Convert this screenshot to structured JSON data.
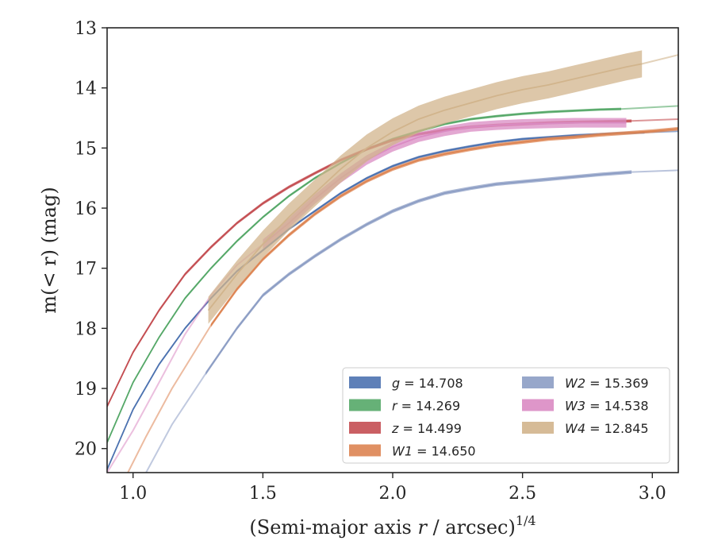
{
  "chart_data": {
    "type": "line",
    "xlabel": "(Semi-major axis r / arcsec)",
    "xlabel_italic": "r",
    "xlabel_sup": "1/4",
    "ylabel": "m(< r) (mag)",
    "xlim": [
      0.9,
      3.1
    ],
    "ylim": [
      20.4,
      13.0
    ],
    "y_inverted": true,
    "xticks": [
      "1.0",
      "1.5",
      "2.0",
      "2.5",
      "3.0"
    ],
    "yticks": [
      "13",
      "14",
      "15",
      "16",
      "17",
      "18",
      "19",
      "20"
    ],
    "grid": false,
    "legend_position": "lower-right",
    "series": [
      {
        "name": "g = 14.708",
        "band": "g",
        "mag": "14.708",
        "color": "#4C72B0",
        "points": [
          [
            0.9,
            20.35
          ],
          [
            1.0,
            19.35
          ],
          [
            1.1,
            18.6
          ],
          [
            1.2,
            18.0
          ],
          [
            1.3,
            17.5
          ],
          [
            1.4,
            17.05
          ],
          [
            1.5,
            16.7
          ],
          [
            1.6,
            16.35
          ],
          [
            1.7,
            16.05
          ],
          [
            1.8,
            15.75
          ],
          [
            1.9,
            15.5
          ],
          [
            2.0,
            15.3
          ],
          [
            2.1,
            15.15
          ],
          [
            2.2,
            15.05
          ],
          [
            2.3,
            14.97
          ],
          [
            2.4,
            14.9
          ],
          [
            2.5,
            14.85
          ],
          [
            2.6,
            14.82
          ],
          [
            2.7,
            14.79
          ],
          [
            2.8,
            14.77
          ],
          [
            2.9,
            14.75
          ],
          [
            2.97,
            14.74
          ]
        ],
        "ext": [
          [
            2.97,
            14.74
          ],
          [
            3.1,
            14.72
          ]
        ],
        "band_from": 0.9,
        "band_width": 0.04
      },
      {
        "name": "r = 14.269",
        "band": "r",
        "mag": "14.269",
        "color": "#55A868",
        "points": [
          [
            0.9,
            19.9
          ],
          [
            1.0,
            18.9
          ],
          [
            1.1,
            18.15
          ],
          [
            1.2,
            17.5
          ],
          [
            1.3,
            17.0
          ],
          [
            1.4,
            16.55
          ],
          [
            1.5,
            16.15
          ],
          [
            1.6,
            15.8
          ],
          [
            1.7,
            15.5
          ],
          [
            1.8,
            15.25
          ],
          [
            1.9,
            15.02
          ],
          [
            2.0,
            14.85
          ],
          [
            2.1,
            14.72
          ],
          [
            2.2,
            14.6
          ],
          [
            2.3,
            14.52
          ],
          [
            2.4,
            14.47
          ],
          [
            2.5,
            14.43
          ],
          [
            2.6,
            14.4
          ],
          [
            2.7,
            14.38
          ],
          [
            2.8,
            14.36
          ],
          [
            2.88,
            14.35
          ]
        ],
        "ext": [
          [
            2.88,
            14.35
          ],
          [
            3.1,
            14.3
          ]
        ],
        "band_from": 0.9,
        "band_width": 0.04
      },
      {
        "name": "z = 14.499",
        "band": "z",
        "mag": "14.499",
        "color": "#C44E52",
        "points": [
          [
            0.9,
            19.3
          ],
          [
            1.0,
            18.4
          ],
          [
            1.1,
            17.7
          ],
          [
            1.2,
            17.1
          ],
          [
            1.3,
            16.65
          ],
          [
            1.4,
            16.25
          ],
          [
            1.5,
            15.92
          ],
          [
            1.6,
            15.65
          ],
          [
            1.7,
            15.42
          ],
          [
            1.8,
            15.2
          ],
          [
            1.9,
            15.02
          ],
          [
            2.0,
            14.87
          ],
          [
            2.1,
            14.77
          ],
          [
            2.2,
            14.7
          ],
          [
            2.3,
            14.65
          ],
          [
            2.4,
            14.62
          ],
          [
            2.5,
            14.6
          ],
          [
            2.6,
            14.58
          ],
          [
            2.7,
            14.57
          ],
          [
            2.8,
            14.56
          ],
          [
            2.92,
            14.55
          ]
        ],
        "ext": [
          [
            2.92,
            14.55
          ],
          [
            3.1,
            14.52
          ]
        ],
        "band_from": 0.9,
        "band_width": 0.05
      },
      {
        "name": "W1 = 14.650",
        "band": "W1",
        "mag": "14.650",
        "color": "#DD8452",
        "points": [
          [
            1.3,
            17.95
          ],
          [
            1.4,
            17.35
          ],
          [
            1.5,
            16.85
          ],
          [
            1.6,
            16.45
          ],
          [
            1.7,
            16.1
          ],
          [
            1.8,
            15.8
          ],
          [
            1.9,
            15.55
          ],
          [
            2.0,
            15.35
          ],
          [
            2.1,
            15.2
          ],
          [
            2.2,
            15.1
          ],
          [
            2.3,
            15.02
          ],
          [
            2.4,
            14.95
          ],
          [
            2.5,
            14.9
          ],
          [
            2.6,
            14.85
          ],
          [
            2.7,
            14.82
          ],
          [
            2.8,
            14.78
          ],
          [
            2.9,
            14.75
          ],
          [
            3.0,
            14.72
          ],
          [
            3.1,
            14.68
          ]
        ],
        "lead": [
          [
            0.98,
            20.4
          ],
          [
            1.05,
            19.8
          ],
          [
            1.15,
            19.0
          ],
          [
            1.3,
            17.95
          ]
        ],
        "band_from": 1.3,
        "band_width": 0.06
      },
      {
        "name": "W2 = 15.369",
        "band": "W2",
        "mag": "15.369",
        "color": "#8C9DC4",
        "points": [
          [
            1.28,
            18.75
          ],
          [
            1.4,
            18.0
          ],
          [
            1.5,
            17.45
          ],
          [
            1.6,
            17.1
          ],
          [
            1.7,
            16.8
          ],
          [
            1.8,
            16.52
          ],
          [
            1.9,
            16.27
          ],
          [
            2.0,
            16.05
          ],
          [
            2.1,
            15.88
          ],
          [
            2.2,
            15.75
          ],
          [
            2.3,
            15.67
          ],
          [
            2.4,
            15.6
          ],
          [
            2.5,
            15.56
          ],
          [
            2.6,
            15.52
          ],
          [
            2.7,
            15.48
          ],
          [
            2.8,
            15.44
          ],
          [
            2.92,
            15.4
          ]
        ],
        "lead": [
          [
            1.05,
            20.4
          ],
          [
            1.15,
            19.6
          ],
          [
            1.28,
            18.75
          ]
        ],
        "ext": [
          [
            2.92,
            15.4
          ],
          [
            3.1,
            15.37
          ]
        ],
        "band_from": 1.28,
        "band_width": 0.06
      },
      {
        "name": "W3 = 14.538",
        "band": "W3",
        "mag": "14.538",
        "color": "#DA8BC3",
        "points": [
          [
            1.5,
            16.6
          ],
          [
            1.6,
            16.25
          ],
          [
            1.7,
            15.85
          ],
          [
            1.8,
            15.5
          ],
          [
            1.9,
            15.2
          ],
          [
            2.0,
            14.98
          ],
          [
            2.1,
            14.82
          ],
          [
            2.2,
            14.72
          ],
          [
            2.3,
            14.65
          ],
          [
            2.4,
            14.62
          ],
          [
            2.5,
            14.6
          ],
          [
            2.6,
            14.59
          ],
          [
            2.7,
            14.58
          ],
          [
            2.8,
            14.58
          ],
          [
            2.9,
            14.58
          ]
        ],
        "lead": [
          [
            0.9,
            20.4
          ],
          [
            1.0,
            19.7
          ],
          [
            1.1,
            18.9
          ],
          [
            1.2,
            18.1
          ],
          [
            1.3,
            17.45
          ],
          [
            1.4,
            16.95
          ],
          [
            1.5,
            16.6
          ]
        ],
        "band_from": 1.5,
        "band_width": 0.16
      },
      {
        "name": "W4 = 12.845",
        "band": "W4",
        "mag": "12.845",
        "color": "#D1B48C",
        "points": [
          [
            1.29,
            17.7
          ],
          [
            1.4,
            17.1
          ],
          [
            1.5,
            16.6
          ],
          [
            1.6,
            16.15
          ],
          [
            1.7,
            15.75
          ],
          [
            1.8,
            15.35
          ],
          [
            1.9,
            15.0
          ],
          [
            2.0,
            14.73
          ],
          [
            2.1,
            14.52
          ],
          [
            2.2,
            14.37
          ],
          [
            2.3,
            14.25
          ],
          [
            2.4,
            14.13
          ],
          [
            2.5,
            14.03
          ],
          [
            2.6,
            13.95
          ],
          [
            2.7,
            13.85
          ],
          [
            2.8,
            13.75
          ],
          [
            2.9,
            13.65
          ],
          [
            2.96,
            13.6
          ]
        ],
        "ext": [
          [
            2.96,
            13.6
          ],
          [
            3.1,
            13.45
          ]
        ],
        "band_from": 1.29,
        "band_width": 0.45
      }
    ]
  }
}
